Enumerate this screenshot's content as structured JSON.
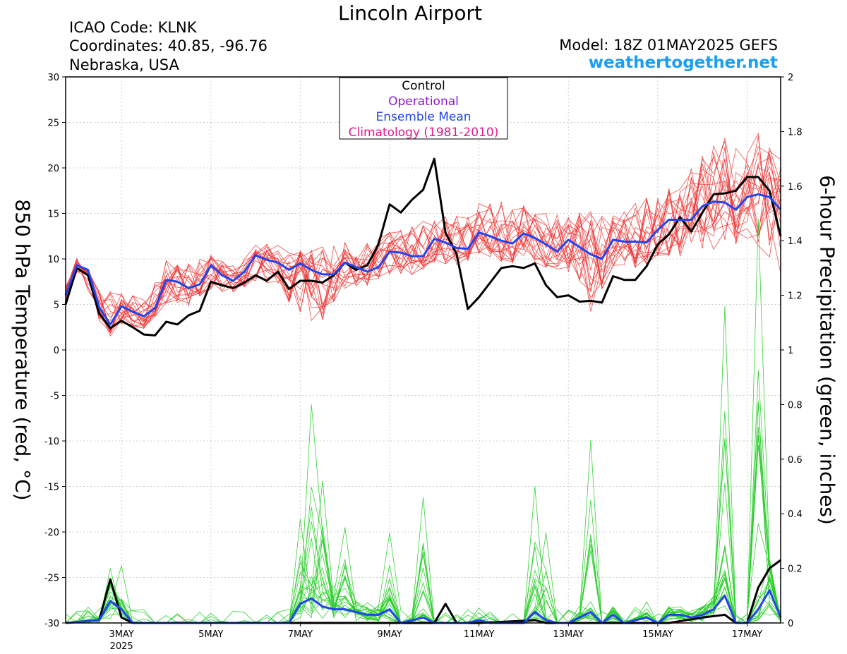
{
  "header": {
    "title": "Lincoln Airport",
    "icao": "ICAO Code: KLNK",
    "coordinates": "Coordinates: 40.85, -96.76",
    "region": "Nebraska, USA",
    "model": "Model: 18Z 01MAY2025 GEFS",
    "site": "weathertogether.net"
  },
  "colors": {
    "control": "#000000",
    "operational": "#8a1ad6",
    "ensemble_mean": "#2244ee",
    "climatology": "#e0198a",
    "members_temp": "#f03030",
    "members_precip": "#22cc22",
    "site": "#1a9ef0"
  },
  "chart_data": {
    "type": "line",
    "ylabel": "850 hPa Temperature (red, °C)",
    "y2label": "6-hour Precipitation (green, inches)",
    "ylim": [
      -30,
      30
    ],
    "y2lim": [
      0,
      2
    ],
    "x_range_days": [
      1.75,
      17.75
    ],
    "y_ticks": [
      30,
      25,
      20,
      15,
      10,
      5,
      0,
      -5,
      -10,
      -15,
      -20,
      -25,
      -30
    ],
    "y2_ticks": [
      "2",
      "1.8",
      "1.6",
      "1.4",
      "1.2",
      "1",
      "0.8",
      "0.6",
      "0.4",
      "0.2",
      "0"
    ],
    "x_ticks": [
      {
        "day": 3,
        "label": "3MAY",
        "sub": "2025"
      },
      {
        "day": 5,
        "label": "5MAY",
        "sub": ""
      },
      {
        "day": 7,
        "label": "7MAY",
        "sub": ""
      },
      {
        "day": 9,
        "label": "9MAY",
        "sub": ""
      },
      {
        "day": 11,
        "label": "11MAY",
        "sub": ""
      },
      {
        "day": 13,
        "label": "13MAY",
        "sub": ""
      },
      {
        "day": 15,
        "label": "15MAY",
        "sub": ""
      },
      {
        "day": 17,
        "label": "17MAY",
        "sub": ""
      }
    ],
    "legend": {
      "placement": "top-center",
      "entries": [
        {
          "label": "Control",
          "color": "#000000"
        },
        {
          "label": "Operational",
          "color": "#8a1ad6"
        },
        {
          "label": "Ensemble Mean",
          "color": "#2244ee"
        },
        {
          "label": "Climatology (1981-2010)",
          "color": "#e0198a"
        }
      ]
    },
    "series": [
      {
        "name": "Control",
        "axis": "temperature",
        "color": "#000000",
        "points": [
          [
            1.75,
            5.0
          ],
          [
            2.0,
            9.0
          ],
          [
            2.25,
            8.2
          ],
          [
            2.5,
            4.0
          ],
          [
            2.75,
            2.4
          ],
          [
            3.0,
            3.2
          ],
          [
            3.25,
            2.5
          ],
          [
            3.5,
            1.7
          ],
          [
            3.75,
            1.6
          ],
          [
            4.0,
            3.1
          ],
          [
            4.25,
            2.8
          ],
          [
            4.5,
            3.8
          ],
          [
            4.75,
            4.3
          ],
          [
            5.0,
            7.5
          ],
          [
            5.25,
            7.1
          ],
          [
            5.5,
            6.8
          ],
          [
            5.75,
            7.4
          ],
          [
            6.0,
            8.2
          ],
          [
            6.25,
            7.6
          ],
          [
            6.5,
            8.6
          ],
          [
            6.75,
            6.7
          ],
          [
            7.0,
            7.6
          ],
          [
            7.25,
            7.6
          ],
          [
            7.5,
            7.4
          ],
          [
            7.75,
            8.2
          ],
          [
            8.0,
            9.6
          ],
          [
            8.25,
            8.8
          ],
          [
            8.5,
            9.3
          ],
          [
            8.75,
            11.6
          ],
          [
            9.0,
            16.0
          ],
          [
            9.25,
            15.1
          ],
          [
            9.5,
            16.5
          ],
          [
            9.75,
            17.6
          ],
          [
            10.0,
            21.0
          ],
          [
            10.25,
            12.9
          ],
          [
            10.5,
            10.5
          ],
          [
            10.75,
            4.5
          ],
          [
            11.0,
            5.8
          ],
          [
            11.25,
            7.4
          ],
          [
            11.5,
            9.0
          ],
          [
            11.75,
            9.2
          ],
          [
            12.0,
            9.0
          ],
          [
            12.25,
            9.5
          ],
          [
            12.5,
            7.1
          ],
          [
            12.75,
            5.8
          ],
          [
            13.0,
            6.0
          ],
          [
            13.25,
            5.3
          ],
          [
            13.5,
            5.4
          ],
          [
            13.75,
            5.2
          ],
          [
            14.0,
            8.1
          ],
          [
            14.25,
            7.7
          ],
          [
            14.5,
            7.7
          ],
          [
            14.75,
            9.2
          ],
          [
            15.0,
            11.6
          ],
          [
            15.25,
            12.7
          ],
          [
            15.5,
            14.6
          ],
          [
            15.75,
            13.0
          ],
          [
            16.0,
            15.1
          ],
          [
            16.25,
            17.1
          ],
          [
            16.5,
            17.2
          ],
          [
            16.75,
            17.5
          ],
          [
            17.0,
            19.0
          ],
          [
            17.25,
            19.0
          ],
          [
            17.5,
            17.5
          ],
          [
            17.75,
            12.5
          ]
        ]
      },
      {
        "name": "Ensemble Mean",
        "axis": "temperature",
        "color": "#2244ee",
        "points": [
          [
            1.75,
            6.0
          ],
          [
            2.0,
            9.3
          ],
          [
            2.25,
            8.8
          ],
          [
            2.5,
            4.7
          ],
          [
            2.75,
            2.8
          ],
          [
            3.0,
            4.8
          ],
          [
            3.25,
            4.2
          ],
          [
            3.5,
            3.7
          ],
          [
            3.75,
            4.6
          ],
          [
            4.0,
            7.7
          ],
          [
            4.25,
            7.5
          ],
          [
            4.5,
            6.8
          ],
          [
            4.75,
            7.2
          ],
          [
            5.0,
            9.3
          ],
          [
            5.25,
            8.2
          ],
          [
            5.5,
            7.6
          ],
          [
            5.75,
            8.6
          ],
          [
            6.0,
            10.4
          ],
          [
            6.25,
            9.9
          ],
          [
            6.5,
            9.6
          ],
          [
            6.75,
            8.8
          ],
          [
            7.0,
            9.5
          ],
          [
            7.25,
            8.8
          ],
          [
            7.5,
            8.3
          ],
          [
            7.75,
            8.3
          ],
          [
            8.0,
            9.6
          ],
          [
            8.25,
            9.1
          ],
          [
            8.5,
            8.6
          ],
          [
            8.75,
            9.1
          ],
          [
            9.0,
            10.8
          ],
          [
            9.25,
            10.7
          ],
          [
            9.5,
            10.3
          ],
          [
            9.75,
            10.3
          ],
          [
            10.0,
            12.2
          ],
          [
            10.25,
            11.8
          ],
          [
            10.5,
            11.2
          ],
          [
            10.75,
            11.1
          ],
          [
            11.0,
            12.9
          ],
          [
            11.25,
            12.5
          ],
          [
            11.5,
            12.0
          ],
          [
            11.75,
            11.7
          ],
          [
            12.0,
            12.8
          ],
          [
            12.25,
            12.3
          ],
          [
            12.5,
            11.6
          ],
          [
            12.75,
            10.8
          ],
          [
            13.0,
            12.1
          ],
          [
            13.25,
            11.3
          ],
          [
            13.5,
            10.5
          ],
          [
            13.75,
            10.0
          ],
          [
            14.0,
            12.1
          ],
          [
            14.25,
            11.9
          ],
          [
            14.5,
            11.9
          ],
          [
            14.75,
            11.8
          ],
          [
            15.0,
            13.2
          ],
          [
            15.25,
            14.3
          ],
          [
            15.5,
            14.3
          ],
          [
            15.75,
            14.3
          ],
          [
            16.0,
            15.8
          ],
          [
            16.25,
            16.3
          ],
          [
            16.5,
            16.2
          ],
          [
            16.75,
            15.4
          ],
          [
            17.0,
            16.8
          ],
          [
            17.25,
            17.1
          ],
          [
            17.5,
            16.8
          ],
          [
            17.75,
            15.4
          ]
        ]
      },
      {
        "name": "Control Precipitation",
        "axis": "precipitation",
        "color": "#000000",
        "points": [
          [
            1.75,
            0.0
          ],
          [
            2.5,
            0.01
          ],
          [
            2.75,
            0.16
          ],
          [
            3.0,
            0.02
          ],
          [
            3.25,
            0.0
          ],
          [
            10.0,
            0.0
          ],
          [
            10.25,
            0.07
          ],
          [
            10.5,
            0.0
          ],
          [
            11.0,
            0.0
          ],
          [
            12.25,
            0.01
          ],
          [
            12.5,
            0.0
          ],
          [
            15.25,
            0.0
          ],
          [
            16.0,
            0.02
          ],
          [
            16.5,
            0.03
          ],
          [
            16.75,
            0.0
          ],
          [
            17.0,
            0.0
          ],
          [
            17.25,
            0.13
          ],
          [
            17.5,
            0.2
          ],
          [
            17.75,
            0.23
          ]
        ]
      },
      {
        "name": "Ensemble Mean Precipitation",
        "axis": "precipitation",
        "color": "#2244ee",
        "points": [
          [
            1.75,
            0.0
          ],
          [
            2.5,
            0.01
          ],
          [
            2.75,
            0.08
          ],
          [
            3.0,
            0.05
          ],
          [
            3.25,
            0.0
          ],
          [
            6.75,
            0.0
          ],
          [
            7.0,
            0.07
          ],
          [
            7.25,
            0.09
          ],
          [
            7.5,
            0.06
          ],
          [
            7.75,
            0.05
          ],
          [
            8.0,
            0.05
          ],
          [
            8.25,
            0.04
          ],
          [
            8.5,
            0.03
          ],
          [
            8.75,
            0.03
          ],
          [
            9.0,
            0.05
          ],
          [
            9.25,
            0.0
          ],
          [
            9.75,
            0.02
          ],
          [
            10.0,
            0.0
          ],
          [
            10.75,
            0.0
          ],
          [
            11.0,
            0.01
          ],
          [
            11.25,
            0.0
          ],
          [
            12.0,
            0.0
          ],
          [
            12.25,
            0.04
          ],
          [
            12.5,
            0.01
          ],
          [
            12.75,
            0.0
          ],
          [
            13.0,
            0.0
          ],
          [
            13.5,
            0.04
          ],
          [
            13.75,
            0.0
          ],
          [
            14.0,
            0.03
          ],
          [
            14.25,
            0.0
          ],
          [
            14.75,
            0.02
          ],
          [
            15.0,
            0.0
          ],
          [
            15.25,
            0.03
          ],
          [
            15.5,
            0.03
          ],
          [
            15.75,
            0.02
          ],
          [
            16.0,
            0.03
          ],
          [
            16.25,
            0.05
          ],
          [
            16.5,
            0.1
          ],
          [
            16.75,
            0.0
          ],
          [
            17.0,
            0.0
          ],
          [
            17.25,
            0.05
          ],
          [
            17.5,
            0.12
          ],
          [
            17.75,
            0.02
          ]
        ]
      },
      {
        "name": "Ensemble Members Temperature",
        "axis": "temperature",
        "color": "#f03030",
        "style": "members",
        "count": 20,
        "envelope_upper": [
          [
            1.75,
            7.0
          ],
          [
            2.0,
            10.2
          ],
          [
            2.5,
            6.5
          ],
          [
            3.0,
            6.6
          ],
          [
            3.5,
            5.8
          ],
          [
            4.0,
            9.8
          ],
          [
            4.5,
            9.5
          ],
          [
            5.0,
            10.6
          ],
          [
            5.5,
            9.3
          ],
          [
            6.0,
            11.6
          ],
          [
            6.5,
            11.6
          ],
          [
            7.0,
            11.0
          ],
          [
            7.5,
            11.4
          ],
          [
            8.0,
            12.8
          ],
          [
            8.5,
            11.8
          ],
          [
            9.0,
            13.2
          ],
          [
            9.5,
            13.8
          ],
          [
            10.0,
            14.5
          ],
          [
            10.5,
            15.0
          ],
          [
            11.0,
            16.2
          ],
          [
            11.5,
            16.4
          ],
          [
            12.0,
            16.0
          ],
          [
            12.5,
            15.2
          ],
          [
            13.0,
            15.4
          ],
          [
            13.5,
            15.6
          ],
          [
            14.0,
            15.4
          ],
          [
            14.5,
            16.2
          ],
          [
            15.0,
            17.4
          ],
          [
            15.5,
            18.4
          ],
          [
            16.0,
            21.6
          ],
          [
            16.5,
            23.6
          ],
          [
            17.0,
            22.0
          ],
          [
            17.25,
            24.0
          ],
          [
            17.5,
            22.8
          ],
          [
            17.75,
            21.0
          ]
        ],
        "envelope_lower": [
          [
            1.75,
            5.5
          ],
          [
            2.0,
            8.4
          ],
          [
            2.5,
            3.0
          ],
          [
            2.75,
            1.4
          ],
          [
            3.0,
            2.6
          ],
          [
            3.5,
            2.2
          ],
          [
            4.0,
            4.8
          ],
          [
            4.5,
            4.6
          ],
          [
            5.0,
            6.0
          ],
          [
            5.5,
            6.2
          ],
          [
            6.0,
            7.2
          ],
          [
            6.5,
            7.0
          ],
          [
            7.0,
            2.3
          ],
          [
            7.5,
            2.4
          ],
          [
            8.0,
            6.4
          ],
          [
            8.5,
            6.8
          ],
          [
            9.0,
            7.8
          ],
          [
            9.5,
            8.0
          ],
          [
            10.0,
            9.2
          ],
          [
            10.5,
            9.0
          ],
          [
            11.0,
            10.2
          ],
          [
            11.5,
            9.2
          ],
          [
            12.0,
            9.0
          ],
          [
            12.5,
            8.6
          ],
          [
            13.0,
            8.0
          ],
          [
            13.5,
            3.4
          ],
          [
            14.0,
            8.6
          ],
          [
            14.5,
            8.6
          ],
          [
            15.0,
            9.6
          ],
          [
            15.5,
            9.8
          ],
          [
            16.0,
            10.2
          ],
          [
            16.5,
            10.6
          ],
          [
            17.0,
            11.0
          ],
          [
            17.5,
            9.0
          ],
          [
            17.75,
            7.5
          ]
        ]
      },
      {
        "name": "Ensemble Members Precipitation",
        "axis": "precipitation",
        "color": "#22cc22",
        "style": "members",
        "count": 20,
        "peaks": [
          [
            2.75,
            0.2
          ],
          [
            2.9,
            0.21
          ],
          [
            7.0,
            0.38
          ],
          [
            7.25,
            0.8
          ],
          [
            7.5,
            0.52
          ],
          [
            8.0,
            0.35
          ],
          [
            9.0,
            0.33
          ],
          [
            9.75,
            0.46
          ],
          [
            12.25,
            0.5
          ],
          [
            13.5,
            0.67
          ],
          [
            12.5,
            0.33
          ],
          [
            16.5,
            1.16
          ],
          [
            17.25,
            1.48
          ],
          [
            17.4,
            0.2
          ]
        ]
      }
    ]
  }
}
